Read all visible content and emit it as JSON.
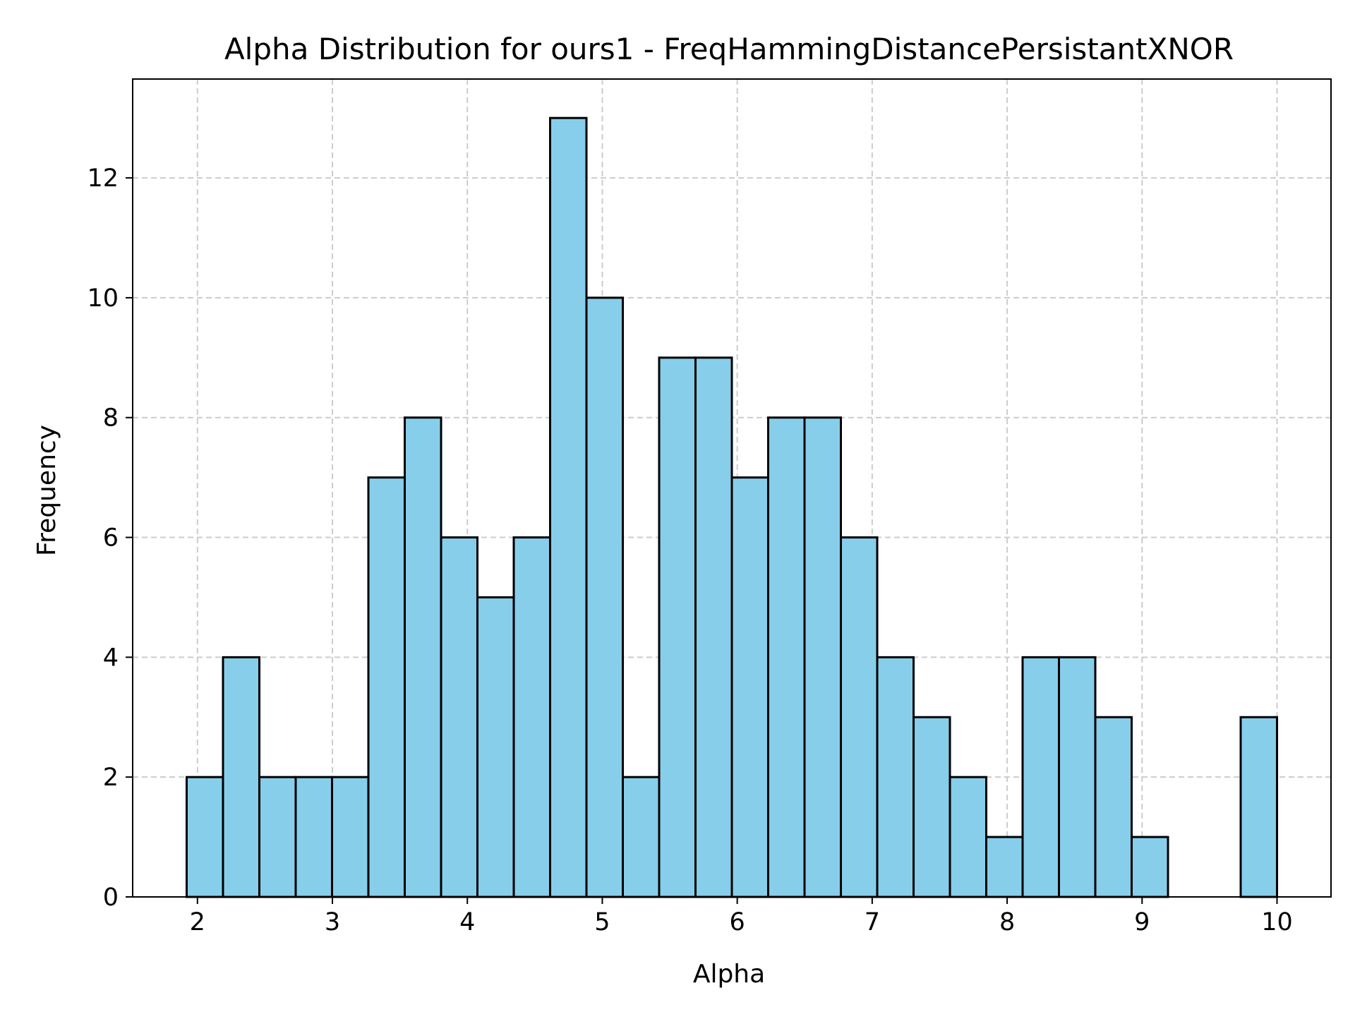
{
  "chart_data": {
    "type": "bar",
    "subtype": "histogram",
    "title": "Alpha Distribution for ours1 - FreqHammingDistancePersistantXNOR",
    "xlabel": "Alpha",
    "ylabel": "Frequency",
    "xlim": [
      1.52,
      10.4
    ],
    "ylim": [
      0,
      13.65
    ],
    "xticks": [
      2,
      3,
      4,
      5,
      6,
      7,
      8,
      9,
      10
    ],
    "yticks": [
      0,
      2,
      4,
      6,
      8,
      10,
      12
    ],
    "bin_range": [
      1.92,
      10.0
    ],
    "bin_count": 30,
    "counts": [
      2,
      4,
      2,
      2,
      2,
      7,
      8,
      6,
      5,
      6,
      13,
      10,
      2,
      9,
      9,
      7,
      8,
      8,
      6,
      4,
      3,
      2,
      1,
      4,
      4,
      3,
      1,
      0,
      0,
      3
    ],
    "grid": true,
    "colors": {
      "bar_fill": "#87ceeb",
      "bar_edge": "#000000",
      "grid": "#cccccc"
    }
  }
}
